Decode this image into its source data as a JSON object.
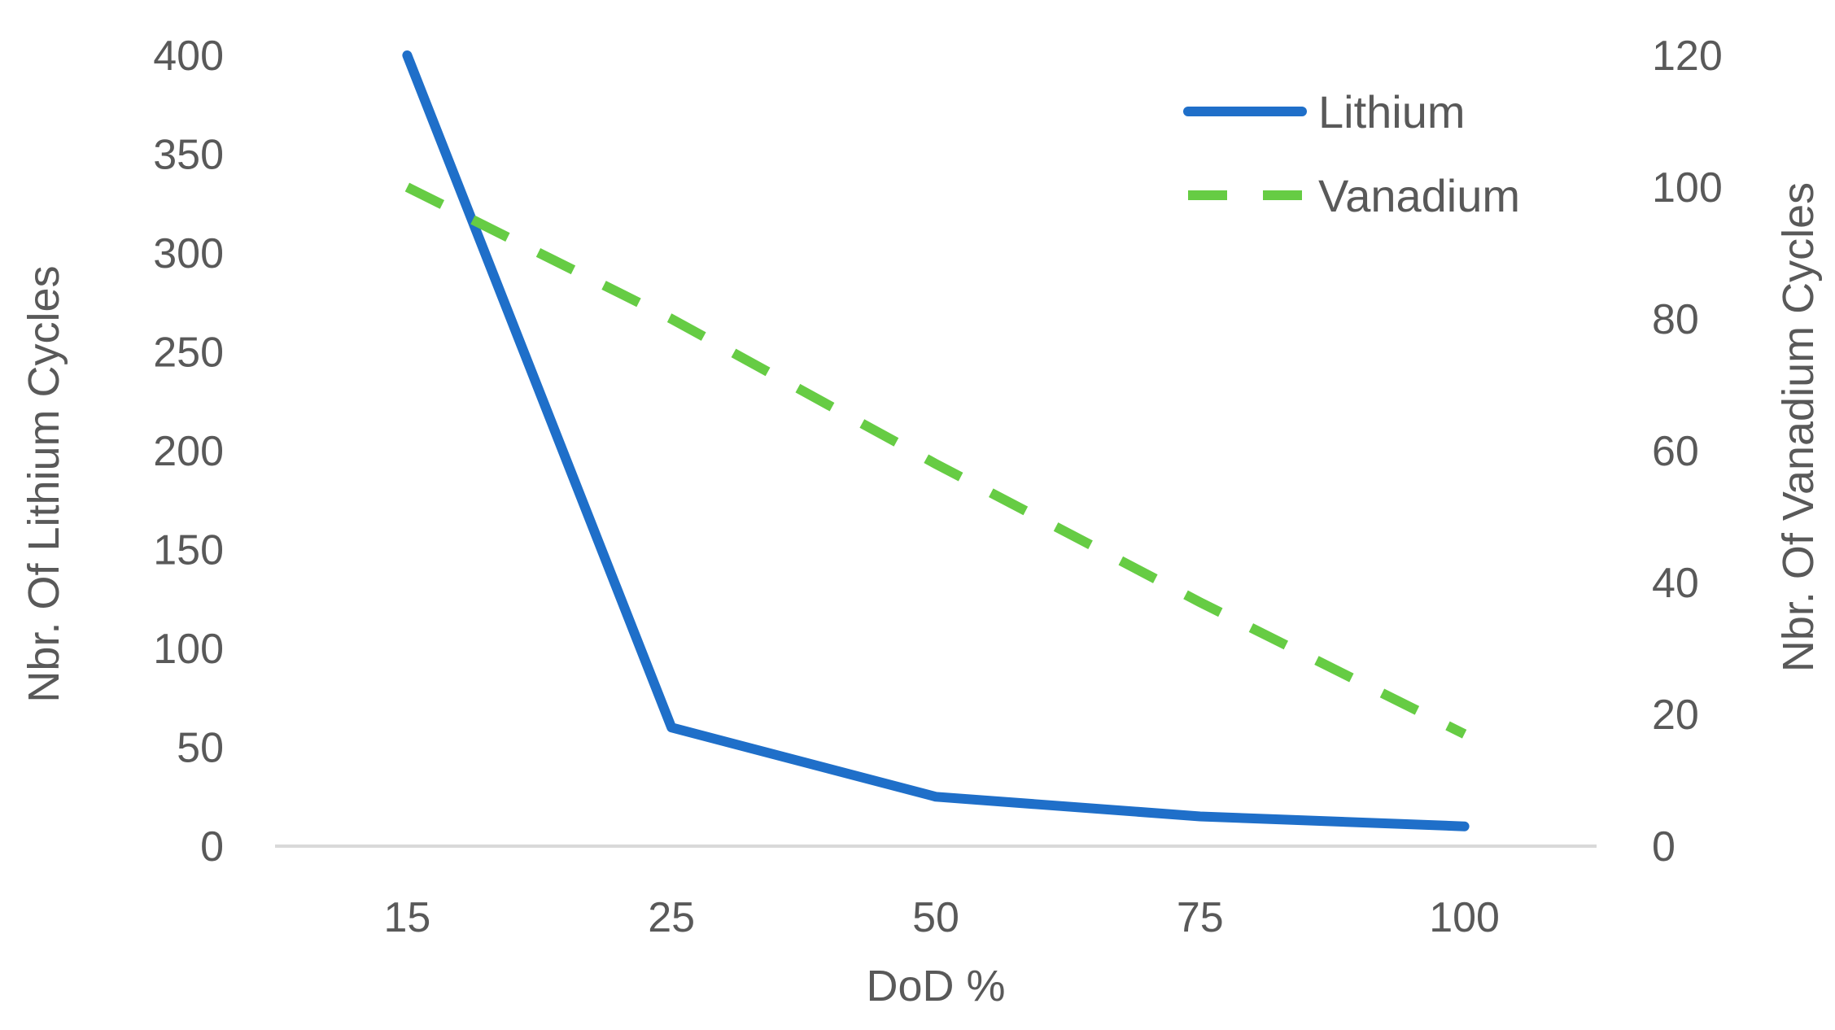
{
  "chart_data": {
    "type": "line",
    "title": "",
    "xlabel": "DoD %",
    "ylabel": "Nbr. Of Lithium Cycles",
    "y2label": "Nbr. Of Vanadium Cycles",
    "categories": [
      "15",
      "25",
      "50",
      "75",
      "100"
    ],
    "ylim": [
      0,
      400
    ],
    "y2lim": [
      0,
      120
    ],
    "yticks": [
      "0",
      "50",
      "100",
      "150",
      "200",
      "250",
      "300",
      "350",
      "400"
    ],
    "y2ticks": [
      "0",
      "20",
      "40",
      "60",
      "80",
      "100",
      "120"
    ],
    "grid": false,
    "legend": "top-right",
    "series": [
      {
        "name": "Lithium",
        "axis": "left",
        "style": "solid",
        "color": "#1F6FC9",
        "values": [
          400,
          60,
          25,
          15,
          10
        ]
      },
      {
        "name": "Vanadium",
        "axis": "right",
        "style": "dashed",
        "color": "#66CC44",
        "values": [
          100,
          80,
          58,
          37,
          17
        ]
      }
    ]
  }
}
